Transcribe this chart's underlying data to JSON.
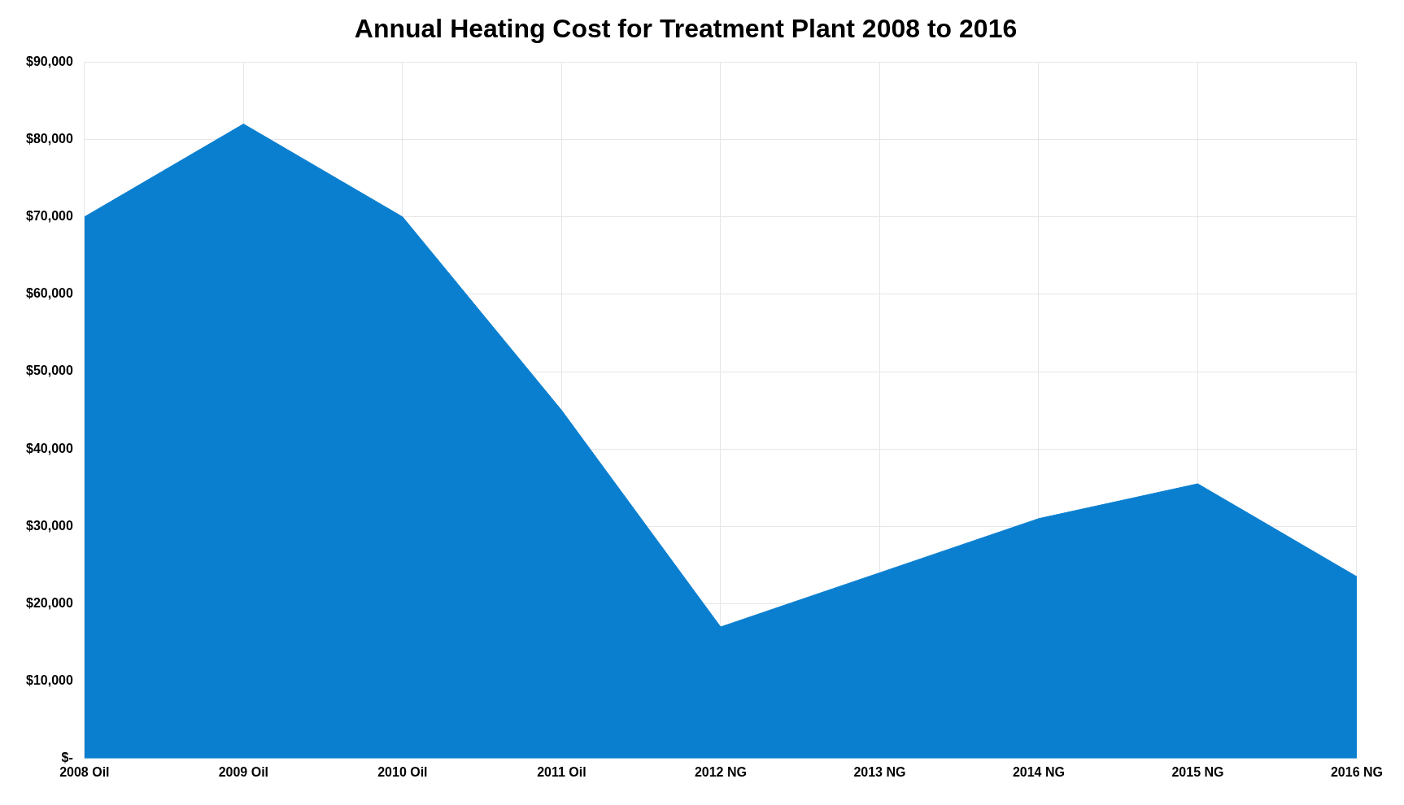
{
  "chart_data": {
    "type": "area",
    "title": "Annual Heating Cost for Treatment Plant 2008 to 2016",
    "categories": [
      "2008 Oil",
      "2009 Oil",
      "2010 Oil",
      "2011 Oil",
      "2012 NG",
      "2013 NG",
      "2014 NG",
      "2015 NG",
      "2016 NG"
    ],
    "series": [
      {
        "color": "#0a7fd0",
        "values": [
          70000,
          82000,
          70000,
          45000,
          17000,
          24000,
          31000,
          35500,
          23500
        ]
      }
    ],
    "ylim": [
      0,
      90000
    ],
    "yticks": [
      {
        "value": 0,
        "label": "$-"
      },
      {
        "value": 10000,
        "label": "$10,000"
      },
      {
        "value": 20000,
        "label": "$20,000"
      },
      {
        "value": 30000,
        "label": "$30,000"
      },
      {
        "value": 40000,
        "label": "$40,000"
      },
      {
        "value": 50000,
        "label": "$50,000"
      },
      {
        "value": 60000,
        "label": "$60,000"
      },
      {
        "value": 70000,
        "label": "$70,000"
      },
      {
        "value": 80000,
        "label": "$80,000"
      },
      {
        "value": 90000,
        "label": "$90,000"
      }
    ],
    "grid": true
  }
}
